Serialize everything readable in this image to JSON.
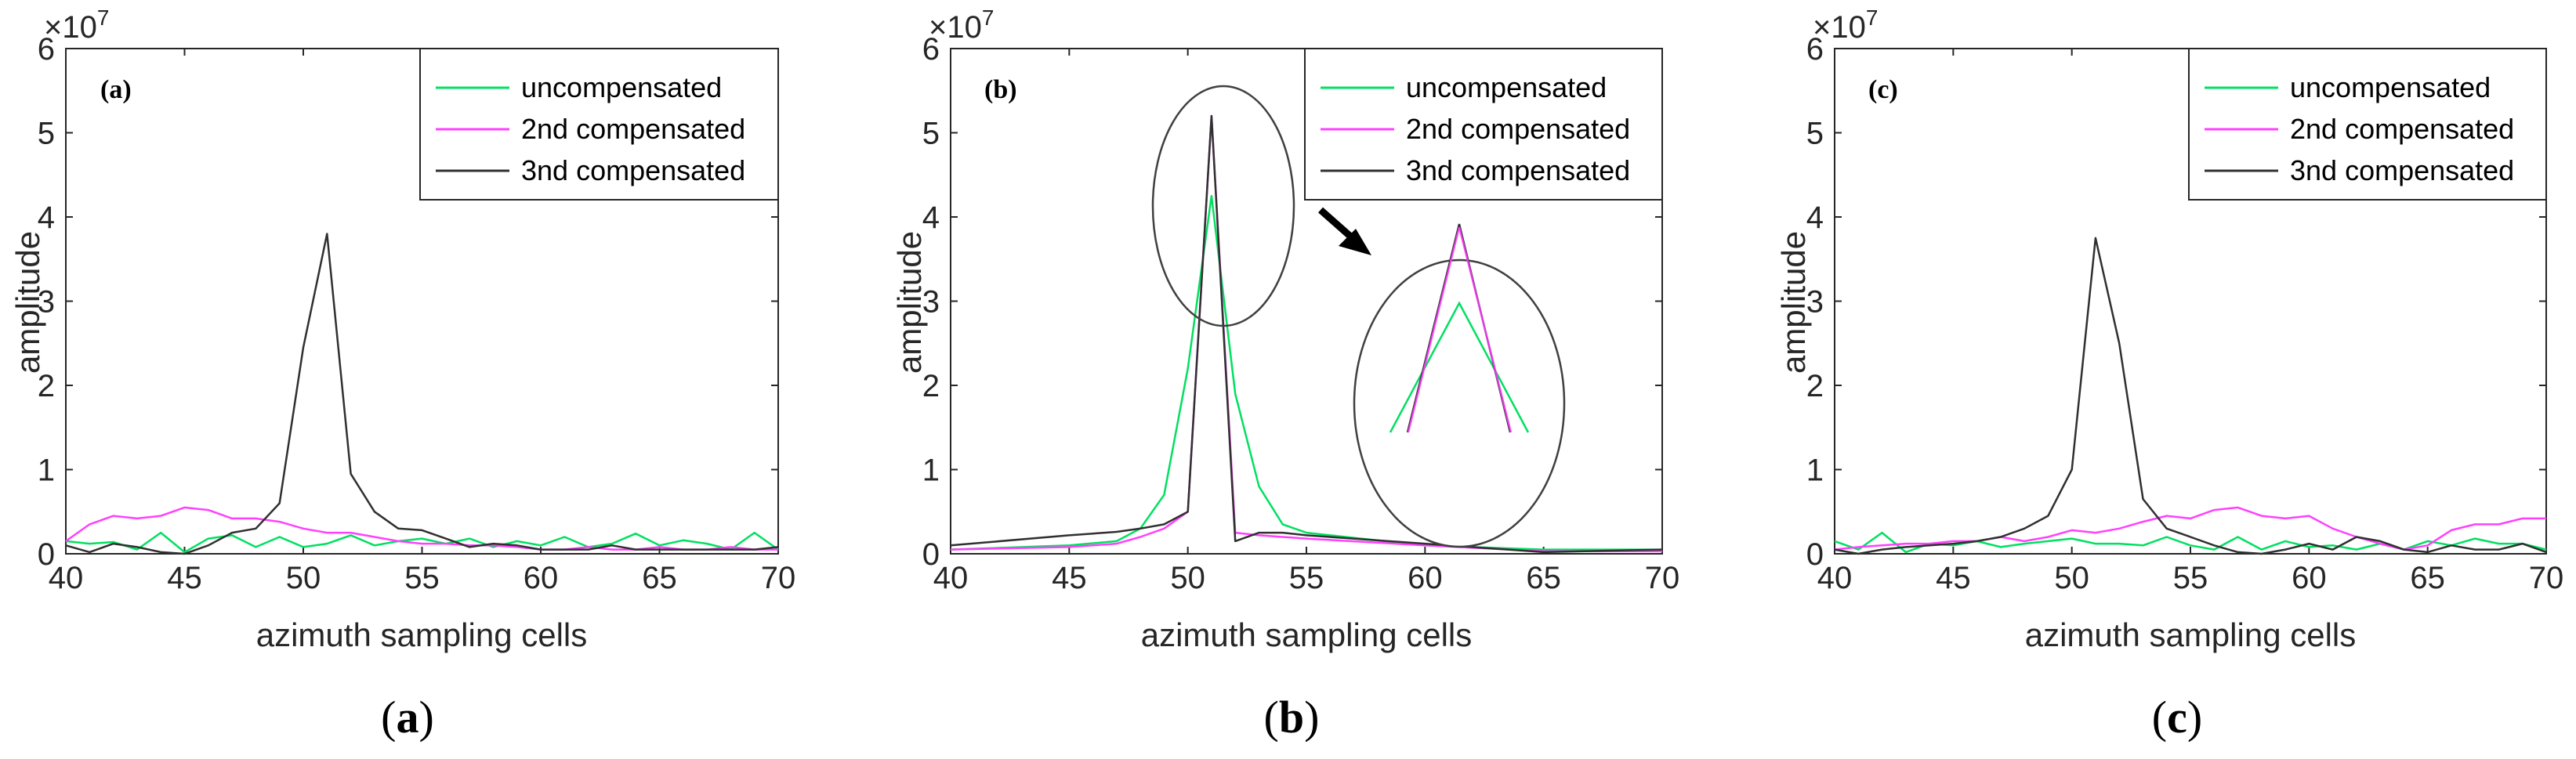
{
  "chart_data": [
    {
      "type": "line",
      "panel_label": "(a)",
      "caption": {
        "open": "(",
        "letter": "a",
        "close": ")"
      },
      "xlabel": "azimuth sampling cells",
      "ylabel": "amplitude",
      "exponent": "×10",
      "exponent_power": "7",
      "xlim": [
        40,
        70
      ],
      "ylim": [
        0,
        6
      ],
      "xticks": [
        "40",
        "45",
        "50",
        "55",
        "60",
        "65",
        "70"
      ],
      "yticks": [
        "0",
        "1",
        "2",
        "3",
        "4",
        "5",
        "6"
      ],
      "x": [
        40,
        41,
        42,
        43,
        44,
        45,
        46,
        47,
        48,
        49,
        50,
        51,
        52,
        53,
        54,
        55,
        56,
        57,
        58,
        59,
        60,
        61,
        62,
        63,
        64,
        65,
        66,
        67,
        68,
        69,
        70
      ],
      "series": [
        {
          "name": "uncompensated",
          "color": "#00e060",
          "values": [
            0.15,
            0.12,
            0.14,
            0.05,
            0.25,
            0.02,
            0.18,
            0.22,
            0.08,
            0.2,
            0.08,
            0.12,
            0.22,
            0.1,
            0.15,
            0.18,
            0.12,
            0.18,
            0.08,
            0.15,
            0.1,
            0.2,
            0.08,
            0.12,
            0.24,
            0.1,
            0.16,
            0.12,
            0.05,
            0.25,
            0.05
          ]
        },
        {
          "name": "2nd compensated",
          "color": "#ff40ff",
          "values": [
            0.15,
            0.35,
            0.45,
            0.42,
            0.45,
            0.55,
            0.52,
            0.42,
            0.42,
            0.38,
            0.3,
            0.25,
            0.25,
            0.2,
            0.15,
            0.12,
            0.12,
            0.1,
            0.1,
            0.08,
            0.05,
            0.05,
            0.08,
            0.05,
            0.05,
            0.08,
            0.05,
            0.05,
            0.08,
            0.05,
            0.05
          ]
        },
        {
          "name": "3nd compensated",
          "color": "#303030",
          "values": [
            0.1,
            0.02,
            0.12,
            0.08,
            0.02,
            0.0,
            0.1,
            0.25,
            0.3,
            0.6,
            2.45,
            3.8,
            0.95,
            0.5,
            0.3,
            0.28,
            0.18,
            0.08,
            0.12,
            0.1,
            0.05,
            0.05,
            0.05,
            0.1,
            0.05,
            0.05,
            0.05,
            0.05,
            0.05,
            0.05,
            0.08
          ]
        }
      ]
    },
    {
      "type": "line",
      "panel_label": "(b)",
      "caption": {
        "open": "(",
        "letter": "b",
        "close": ")"
      },
      "xlabel": "azimuth sampling cells",
      "ylabel": "amplitude",
      "exponent": "×10",
      "exponent_power": "7",
      "xlim": [
        40,
        70
      ],
      "ylim": [
        0,
        6
      ],
      "xticks": [
        "40",
        "45",
        "50",
        "55",
        "60",
        "65",
        "70"
      ],
      "yticks": [
        "0",
        "1",
        "2",
        "3",
        "4",
        "5",
        "6"
      ],
      "x": [
        40,
        45,
        47,
        48,
        49,
        50,
        51,
        52,
        53,
        54,
        55,
        60,
        65,
        70
      ],
      "series": [
        {
          "name": "uncompensated",
          "color": "#00e060",
          "values": [
            0.05,
            0.1,
            0.15,
            0.3,
            0.7,
            2.2,
            4.25,
            1.9,
            0.8,
            0.35,
            0.25,
            0.1,
            0.05,
            0.05
          ]
        },
        {
          "name": "2nd compensated",
          "color": "#ff40ff",
          "values": [
            0.05,
            0.08,
            0.12,
            0.2,
            0.3,
            0.5,
            5.2,
            0.25,
            0.22,
            0.2,
            0.18,
            0.1,
            0.03,
            0.03
          ]
        },
        {
          "name": "3nd compensated",
          "color": "#303030",
          "values": [
            0.1,
            0.22,
            0.26,
            0.3,
            0.35,
            0.5,
            5.2,
            0.15,
            0.25,
            0.25,
            0.22,
            0.12,
            0.02,
            0.05
          ]
        }
      ]
    },
    {
      "type": "line",
      "panel_label": "(c)",
      "caption": {
        "open": "(",
        "letter": "c",
        "close": ")"
      },
      "xlabel": "azimuth sampling cells",
      "ylabel": "amplitude",
      "exponent": "×10",
      "exponent_power": "7",
      "xlim": [
        40,
        70
      ],
      "ylim": [
        0,
        6
      ],
      "xticks": [
        "40",
        "45",
        "50",
        "55",
        "60",
        "65",
        "70"
      ],
      "yticks": [
        "0",
        "1",
        "2",
        "3",
        "4",
        "5",
        "6"
      ],
      "x": [
        40,
        41,
        42,
        43,
        44,
        45,
        46,
        47,
        48,
        49,
        50,
        51,
        52,
        53,
        54,
        55,
        56,
        57,
        58,
        59,
        60,
        61,
        62,
        63,
        64,
        65,
        66,
        67,
        68,
        69,
        70
      ],
      "series": [
        {
          "name": "uncompensated",
          "color": "#00e060",
          "values": [
            0.15,
            0.05,
            0.25,
            0.02,
            0.12,
            0.1,
            0.15,
            0.08,
            0.12,
            0.15,
            0.18,
            0.12,
            0.12,
            0.1,
            0.2,
            0.1,
            0.05,
            0.2,
            0.05,
            0.15,
            0.08,
            0.1,
            0.05,
            0.12,
            0.05,
            0.15,
            0.1,
            0.18,
            0.12,
            0.12,
            0.05
          ]
        },
        {
          "name": "2nd compensated",
          "color": "#ff40ff",
          "values": [
            0.05,
            0.08,
            0.1,
            0.12,
            0.12,
            0.15,
            0.15,
            0.2,
            0.15,
            0.2,
            0.28,
            0.25,
            0.3,
            0.38,
            0.45,
            0.42,
            0.52,
            0.55,
            0.45,
            0.42,
            0.45,
            0.3,
            0.2,
            0.12,
            0.05,
            0.1,
            0.28,
            0.35,
            0.35,
            0.42,
            0.42
          ]
        },
        {
          "name": "3nd compensated",
          "color": "#303030",
          "values": [
            0.05,
            0.0,
            0.05,
            0.08,
            0.1,
            0.12,
            0.15,
            0.2,
            0.3,
            0.45,
            1.0,
            3.75,
            2.5,
            0.65,
            0.3,
            0.2,
            0.1,
            0.02,
            0.0,
            0.05,
            0.12,
            0.05,
            0.2,
            0.15,
            0.05,
            0.02,
            0.1,
            0.05,
            0.05,
            0.12,
            0.02
          ]
        }
      ]
    }
  ]
}
